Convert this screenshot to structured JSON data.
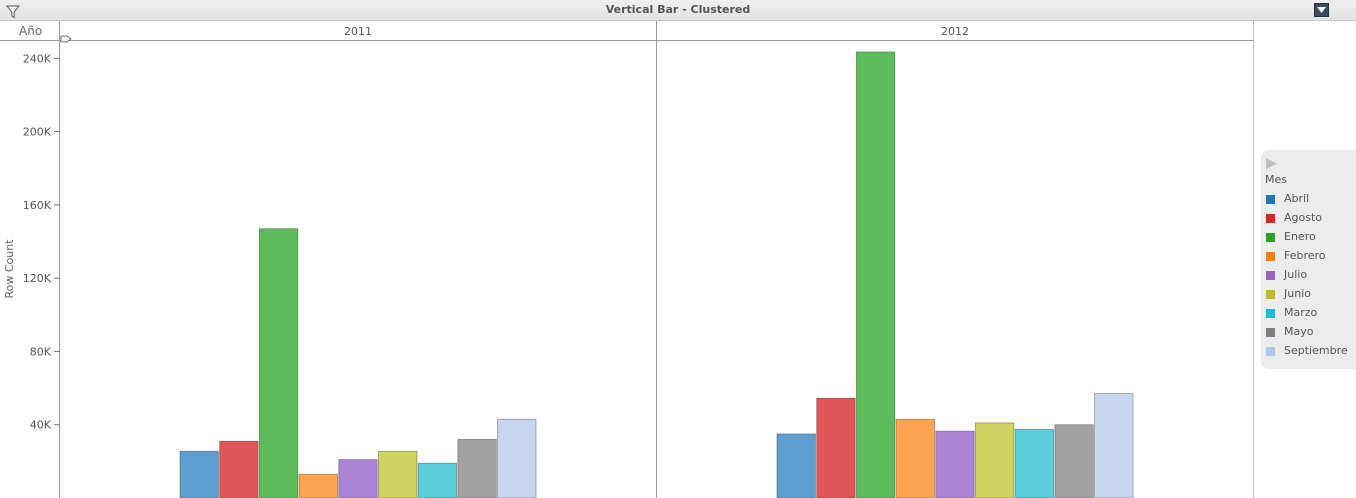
{
  "header": {
    "title": "Vertical Bar - Clustered",
    "filter_icon": "filter-icon",
    "menu_icon": "dropdown-menu-icon"
  },
  "chart_data": {
    "type": "bar",
    "title": "Vertical Bar - Clustered",
    "column_header_title": "Año",
    "panels": [
      "2011",
      "2012"
    ],
    "ylabel": "Row Count",
    "ylim": [
      0,
      250000
    ],
    "yticks": [
      40000,
      80000,
      120000,
      160000,
      200000,
      240000
    ],
    "ytick_labels": [
      "40K",
      "80K",
      "120K",
      "160K",
      "200K",
      "240K"
    ],
    "categories": [
      "Abril",
      "Agosto",
      "Enero",
      "Febrero",
      "Julio",
      "Junio",
      "Marzo",
      "Mayo",
      "Septiembre"
    ],
    "series": [
      {
        "name": "2011",
        "values": [
          25500,
          31000,
          147000,
          13000,
          21000,
          25500,
          19000,
          32000,
          43000
        ]
      },
      {
        "name": "2012",
        "values": [
          35000,
          54500,
          243500,
          43000,
          36500,
          41000,
          37500,
          40000,
          57000
        ]
      }
    ],
    "colors": [
      "#5f9fd0",
      "#e05555",
      "#5dbd5d",
      "#fda451",
      "#ab85d3",
      "#cfd35f",
      "#5bcfdc",
      "#a2a2a2",
      "#c6d6ef"
    ],
    "legend": {
      "title": "Mes",
      "placement": "right",
      "colors": [
        "#1f77b4",
        "#d62728",
        "#2ca02c",
        "#ff7f0e",
        "#9467bd",
        "#bcbd22",
        "#17becf",
        "#7f7f7f",
        "#aec7e8"
      ]
    },
    "grid": false
  }
}
